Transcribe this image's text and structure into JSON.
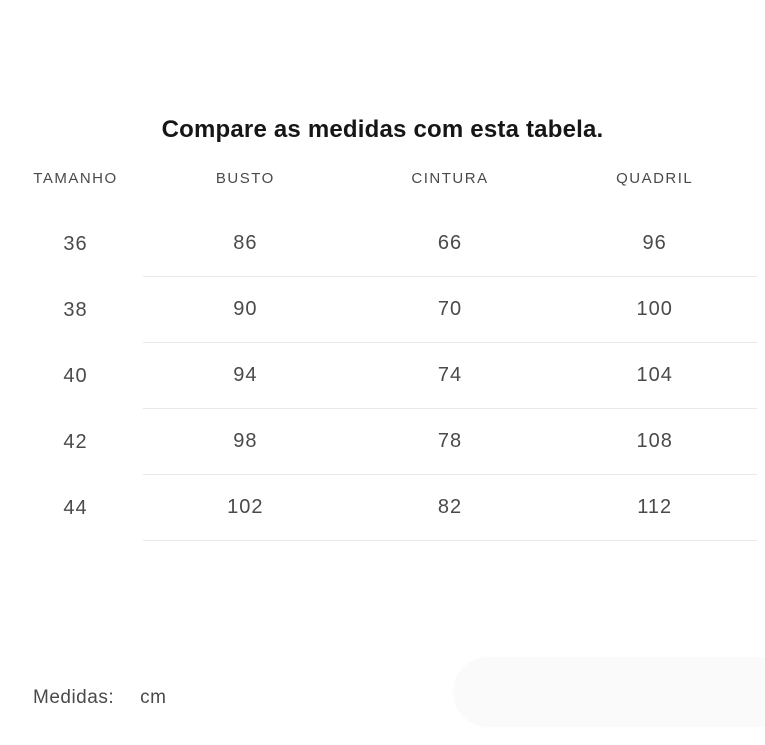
{
  "page": {
    "title": "Compare as medidas com esta tabela."
  },
  "size_table": {
    "columns": [
      "TAMANHO",
      "BUSTO",
      "CINTURA",
      "QUADRIL"
    ],
    "rows": [
      [
        "36",
        "86",
        "66",
        "96"
      ],
      [
        "38",
        "90",
        "70",
        "100"
      ],
      [
        "40",
        "94",
        "74",
        "104"
      ],
      [
        "42",
        "98",
        "78",
        "108"
      ],
      [
        "44",
        "102",
        "82",
        "112"
      ]
    ]
  },
  "footer": {
    "label": "Medidas:",
    "unit": "cm"
  },
  "colors": {
    "title_text": "#161616",
    "body_text": "#4a4a4a",
    "divider": "#e9e9e9",
    "pill_background": "#fafafa"
  }
}
